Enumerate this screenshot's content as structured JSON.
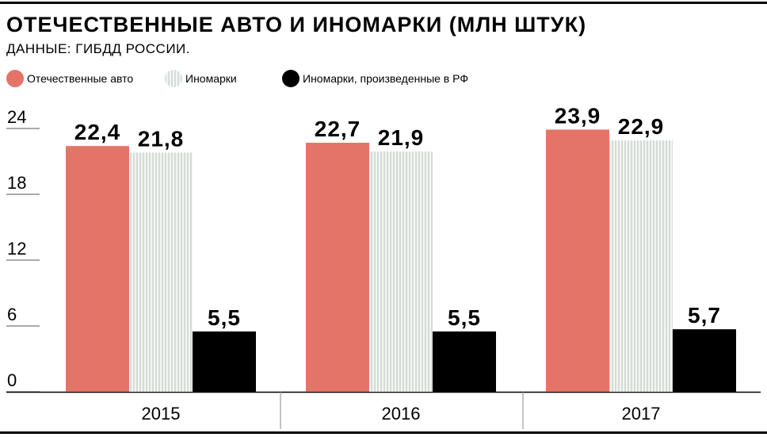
{
  "title": "ОТЕЧЕСТВЕННЫЕ АВТО И ИНОМАРКИ (МЛН ШТУК)",
  "subtitle": "ДАННЫЕ: ГИБДД РОССИИ.",
  "legend": [
    {
      "label": "Отечественные авто",
      "color": "#e57468"
    },
    {
      "label": "Иномарки",
      "color": "#dfe6e0"
    },
    {
      "label": "Иномарки, произведенные в РФ",
      "color": "#000000"
    }
  ],
  "chart_data": {
    "type": "bar",
    "categories": [
      "2015",
      "2016",
      "2017"
    ],
    "series": [
      {
        "name": "Отечественные авто",
        "values": [
          22.4,
          22.7,
          23.9
        ],
        "labels": [
          "22,4",
          "22,7",
          "23,9"
        ],
        "color": "#e57468"
      },
      {
        "name": "Иномарки",
        "values": [
          21.8,
          21.9,
          22.9
        ],
        "labels": [
          "21,8",
          "21,9",
          "22,9"
        ],
        "color": "#dfe6e0"
      },
      {
        "name": "Иномарки, произведенные в РФ",
        "values": [
          5.5,
          5.5,
          5.7
        ],
        "labels": [
          "5,5",
          "5,5",
          "5,7"
        ],
        "color": "#000000"
      }
    ],
    "ylim": [
      0,
      24
    ],
    "yticks": [
      "0",
      "6",
      "12",
      "18",
      "24"
    ],
    "ytick_values": [
      0,
      6,
      12,
      18,
      24
    ],
    "legend_position": "top-left",
    "grid": false
  }
}
